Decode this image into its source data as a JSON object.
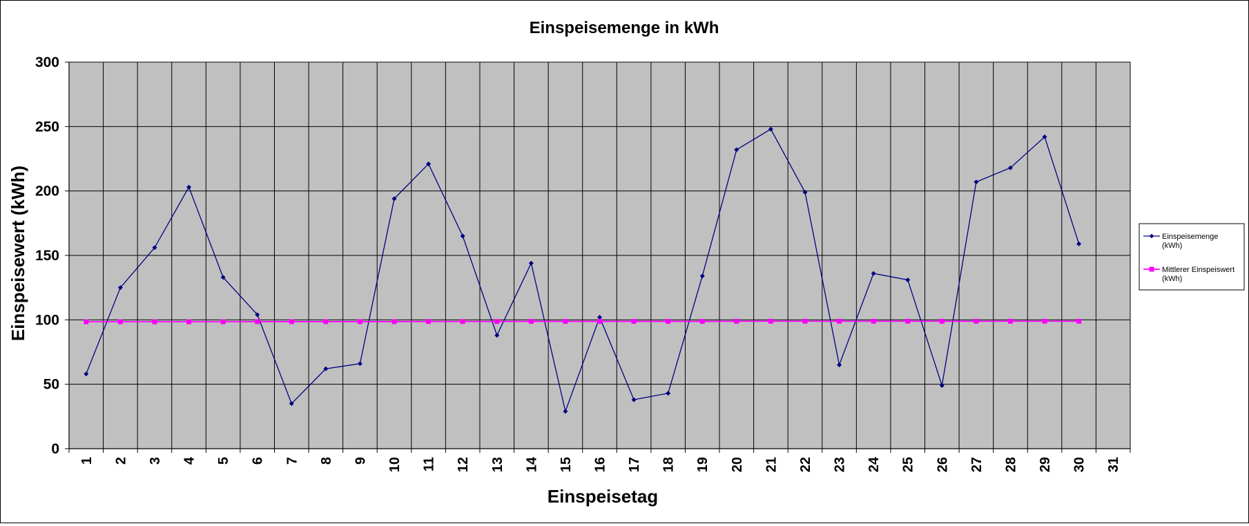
{
  "chart_data": {
    "type": "line",
    "title": "Einspeisemenge in kWh",
    "xlabel": "Einspeisetag",
    "ylabel": "Einspeisewert  (kWh)",
    "ylim": [
      0,
      300
    ],
    "yticks": [
      "0",
      "50",
      "100",
      "150",
      "200",
      "250",
      "300"
    ],
    "categories": [
      "1",
      "2",
      "3",
      "4",
      "5",
      "6",
      "7",
      "8",
      "9",
      "10",
      "11",
      "12",
      "13",
      "14",
      "15",
      "16",
      "17",
      "18",
      "19",
      "20",
      "21",
      "22",
      "23",
      "24",
      "25",
      "26",
      "27",
      "28",
      "29",
      "30",
      "31"
    ],
    "grid": true,
    "legend_position": "right",
    "plot_background": "#c0c0c0",
    "series": [
      {
        "name": "Einspeisemenge (kWh)",
        "legend_lines": [
          "Einspeisemenge",
          "(kWh)"
        ],
        "color": "#000080",
        "marker": "diamond",
        "values": [
          58,
          125,
          156,
          203,
          133,
          104,
          35,
          62,
          66,
          194,
          221,
          165,
          88,
          144,
          29,
          102,
          38,
          43,
          134,
          232,
          248,
          199,
          65,
          136,
          131,
          49,
          207,
          218,
          242,
          159,
          null
        ]
      },
      {
        "name": "Mittlerer Einspeiswert (kWh)",
        "legend_lines": [
          "Mittlerer Einspeiswert",
          "(kWh)"
        ],
        "color": "#ff00ff",
        "marker": "square",
        "values": [
          98.5,
          98.5,
          98.5,
          98.5,
          98.5,
          98.6,
          98.6,
          98.6,
          98.6,
          98.6,
          98.7,
          98.7,
          98.7,
          98.8,
          98.8,
          98.8,
          98.8,
          98.8,
          98.8,
          98.9,
          98.9,
          98.9,
          98.9,
          98.9,
          98.9,
          98.9,
          98.9,
          98.9,
          98.9,
          98.9,
          null
        ]
      }
    ]
  }
}
